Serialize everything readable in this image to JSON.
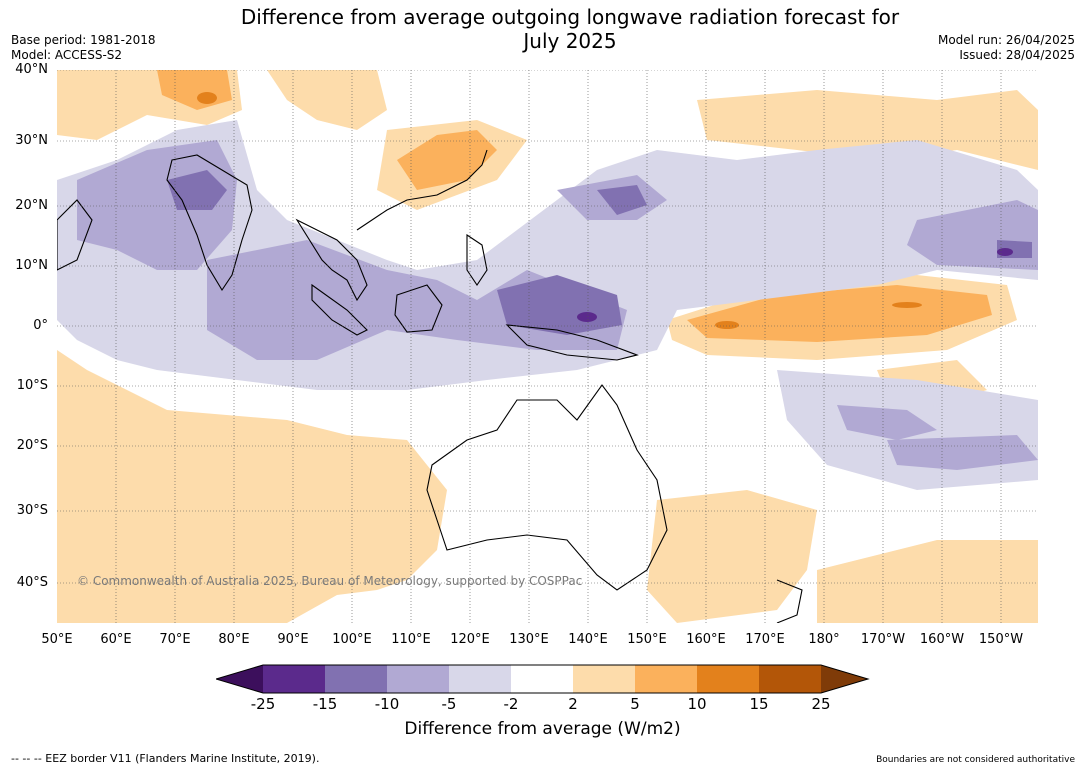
{
  "title_line1": "Difference from average outgoing longwave radiation forecast for",
  "title_line2": "July 2025",
  "meta": {
    "base_period": "Base period: 1981-2018",
    "model": "Model: ACCESS-S2",
    "model_run": "Model run: 26/04/2025",
    "issued": "Issued: 28/04/2025"
  },
  "latitude_labels": [
    "40°N",
    "30°N",
    "20°N",
    "10°N",
    "0°",
    "10°S",
    "20°S",
    "30°S",
    "40°S"
  ],
  "longitude_labels": [
    "50°E",
    "60°E",
    "70°E",
    "80°E",
    "90°E",
    "100°E",
    "110°E",
    "120°E",
    "130°E",
    "140°E",
    "150°E",
    "160°E",
    "170°E",
    "180°",
    "170°W",
    "160°W",
    "150°W"
  ],
  "copyright": "© Commonwealth of Australia 2025, Bureau of Meteorology, supported by COSPPac",
  "legend": {
    "title": "Difference from average (W/m2)",
    "ticks": [
      "-25",
      "-15",
      "-10",
      "-5",
      "-2",
      "2",
      "5",
      "10",
      "15",
      "25"
    ],
    "colors": [
      "#3c0f5c",
      "#5b2a8c",
      "#8171b1",
      "#b1a9d3",
      "#d8d7e9",
      "#ffffff",
      "#fddcab",
      "#fbb15c",
      "#e3811c",
      "#b35608",
      "#7f3b08"
    ]
  },
  "footer_left": "--  --  -- EEZ border V11 (Flanders Marine Institute, 2019).",
  "footer_right": "Boundaries are not considered authoritative"
}
